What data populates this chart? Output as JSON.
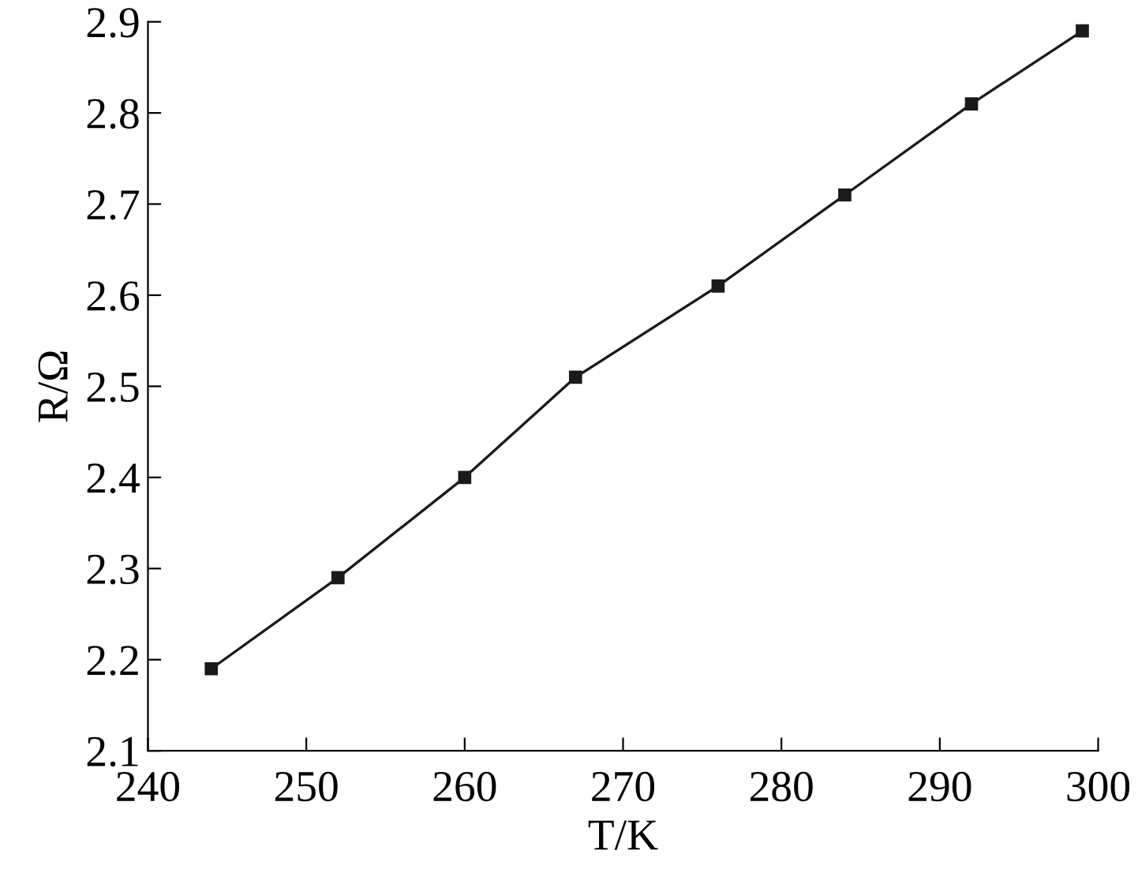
{
  "chart_data": {
    "type": "line",
    "xlabel": "T/K",
    "ylabel": "R/Ω",
    "x": [
      244,
      252,
      260,
      267,
      276,
      284,
      292,
      299
    ],
    "series": [
      {
        "color": "#1a1a1a",
        "values": [
          2.19,
          2.29,
          2.4,
          2.51,
          2.61,
          2.71,
          2.81,
          2.89
        ]
      }
    ],
    "xlim": [
      240,
      300
    ],
    "xticks": [
      240,
      250,
      260,
      270,
      280,
      290,
      300
    ],
    "ylim": [
      2.1,
      2.9
    ],
    "yticks": [
      {
        "value": 2.1,
        "label": "2.1"
      },
      {
        "value": 2.2,
        "label": "2.2"
      },
      {
        "value": 2.3,
        "label": "2.3"
      },
      {
        "value": 2.4,
        "label": "2.4"
      },
      {
        "value": 2.5,
        "label": "2.5"
      },
      {
        "value": 2.6,
        "label": "2.6"
      },
      {
        "value": 2.7,
        "label": "2.7"
      },
      {
        "value": 2.8,
        "label": "2.8"
      },
      {
        "value": 2.9,
        "label": "2.9"
      }
    ],
    "marker": "square",
    "line_style": "solid",
    "grid": false,
    "legend": false
  }
}
